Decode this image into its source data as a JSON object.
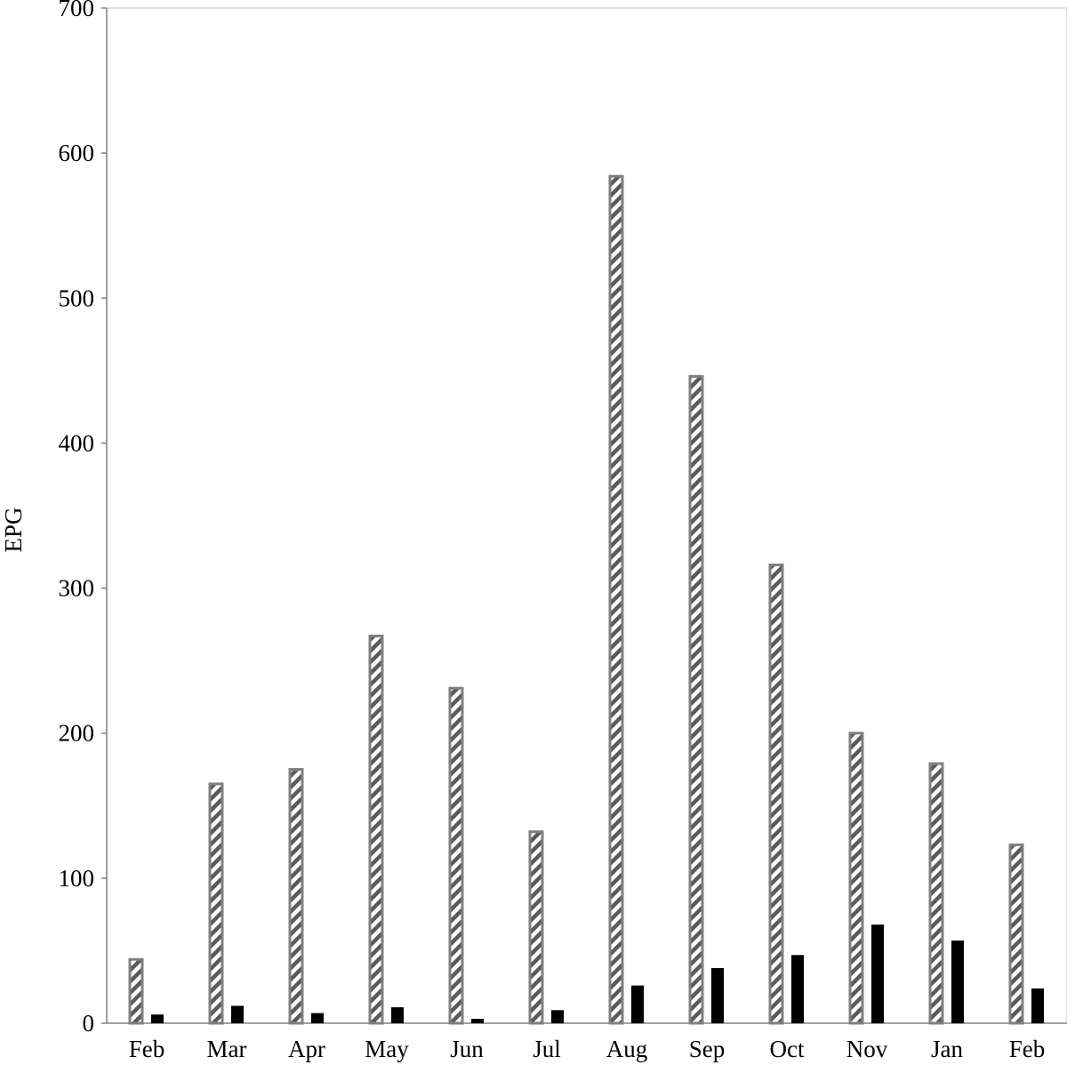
{
  "chart_data": {
    "type": "bar",
    "title": "",
    "xlabel": "",
    "ylabel": "EPG",
    "ylim": [
      0,
      700
    ],
    "yticks": [
      0,
      100,
      200,
      300,
      400,
      500,
      600,
      700
    ],
    "grid": false,
    "legend": "none",
    "categories": [
      "Feb",
      "Mar",
      "Apr",
      "May",
      "Jun",
      "Jul",
      "Aug",
      "Sep",
      "Oct",
      "Nov",
      "Jan",
      "Feb"
    ],
    "series": [
      {
        "values": [
          44,
          165,
          175,
          267,
          231,
          132,
          584,
          446,
          316,
          200,
          179,
          123
        ],
        "fill": "hatched",
        "color": "#808080"
      },
      {
        "values": [
          6,
          12,
          7,
          11,
          3,
          9,
          26,
          38,
          47,
          68,
          57,
          24
        ],
        "fill": "solid",
        "color": "#000000"
      }
    ]
  }
}
